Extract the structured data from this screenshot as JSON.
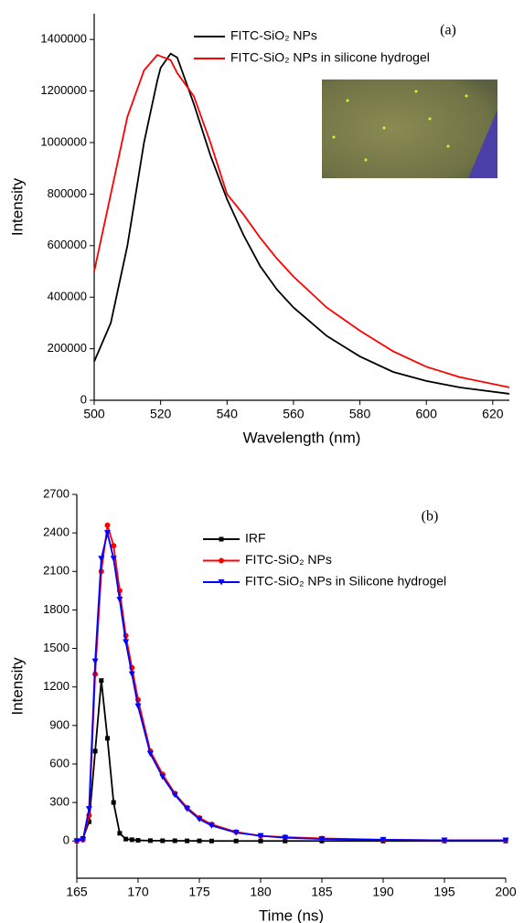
{
  "chart_data": [
    {
      "type": "line",
      "annotation": "(a)",
      "x_label": "Wavelength (nm)",
      "y_label": "Intensity",
      "x": [
        500,
        505,
        510,
        515,
        519,
        520,
        523,
        525,
        530,
        535,
        540,
        545,
        550,
        555,
        560,
        570,
        580,
        590,
        600,
        610,
        625
      ],
      "series": [
        {
          "name": "FITC-SiO₂ NPs",
          "color": "#000000",
          "values": [
            150000,
            300000,
            600000,
            1000000,
            1240000,
            1290000,
            1345000,
            1330000,
            1150000,
            950000,
            780000,
            640000,
            520000,
            430000,
            360000,
            250000,
            170000,
            110000,
            75000,
            50000,
            25000
          ]
        },
        {
          "name": "FITC-SiO₂ NPs in silicone hydrogel",
          "color": "#ff0000",
          "values": [
            500000,
            800000,
            1100000,
            1280000,
            1340000,
            1335000,
            1320000,
            1270000,
            1180000,
            1000000,
            800000,
            720000,
            630000,
            550000,
            480000,
            360000,
            270000,
            190000,
            130000,
            90000,
            50000
          ]
        }
      ],
      "xlim": [
        500,
        625
      ],
      "xticks": [
        500,
        520,
        540,
        560,
        580,
        600,
        620
      ],
      "ylim": [
        0,
        1500000
      ],
      "yticks": [
        0,
        200000,
        400000,
        600000,
        800000,
        1000000,
        1200000,
        1400000
      ]
    },
    {
      "type": "line",
      "annotation": "(b)",
      "x_label": "Time (ns)",
      "y_label": "Intensity",
      "x": [
        165,
        165.5,
        166,
        166.5,
        167,
        167.5,
        168,
        168.5,
        169,
        169.5,
        170,
        171,
        172,
        173,
        174,
        175,
        176,
        178,
        180,
        182,
        185,
        190,
        195,
        200
      ],
      "series": [
        {
          "name": "IRF",
          "color": "#000000",
          "marker": "square",
          "values": [
            0,
            20,
            150,
            700,
            1250,
            800,
            300,
            60,
            15,
            10,
            5,
            3,
            2,
            2,
            1,
            1,
            0,
            0,
            0,
            0,
            0,
            0,
            0,
            0
          ]
        },
        {
          "name": "FITC-SiO₂ NPs",
          "color": "#ff0000",
          "marker": "circle",
          "values": [
            0,
            10,
            200,
            1300,
            2100,
            2460,
            2300,
            1950,
            1600,
            1350,
            1100,
            700,
            520,
            370,
            260,
            180,
            130,
            70,
            40,
            30,
            20,
            10,
            5,
            5
          ]
        },
        {
          "name": "FITC-SiO₂ NPs in Silicone hydrogel",
          "color": "#0000ff",
          "marker": "triangle-down",
          "values": [
            0,
            10,
            250,
            1400,
            2200,
            2400,
            2200,
            1880,
            1550,
            1300,
            1050,
            680,
            500,
            360,
            250,
            170,
            120,
            65,
            40,
            25,
            15,
            10,
            5,
            5
          ]
        }
      ],
      "xlim": [
        165,
        200
      ],
      "xticks": [
        165,
        170,
        175,
        180,
        185,
        190,
        195,
        200
      ],
      "ylim": [
        -290,
        2700
      ],
      "yticks": [
        0,
        300,
        600,
        900,
        1200,
        1500,
        1800,
        2100,
        2400,
        2700
      ]
    }
  ]
}
